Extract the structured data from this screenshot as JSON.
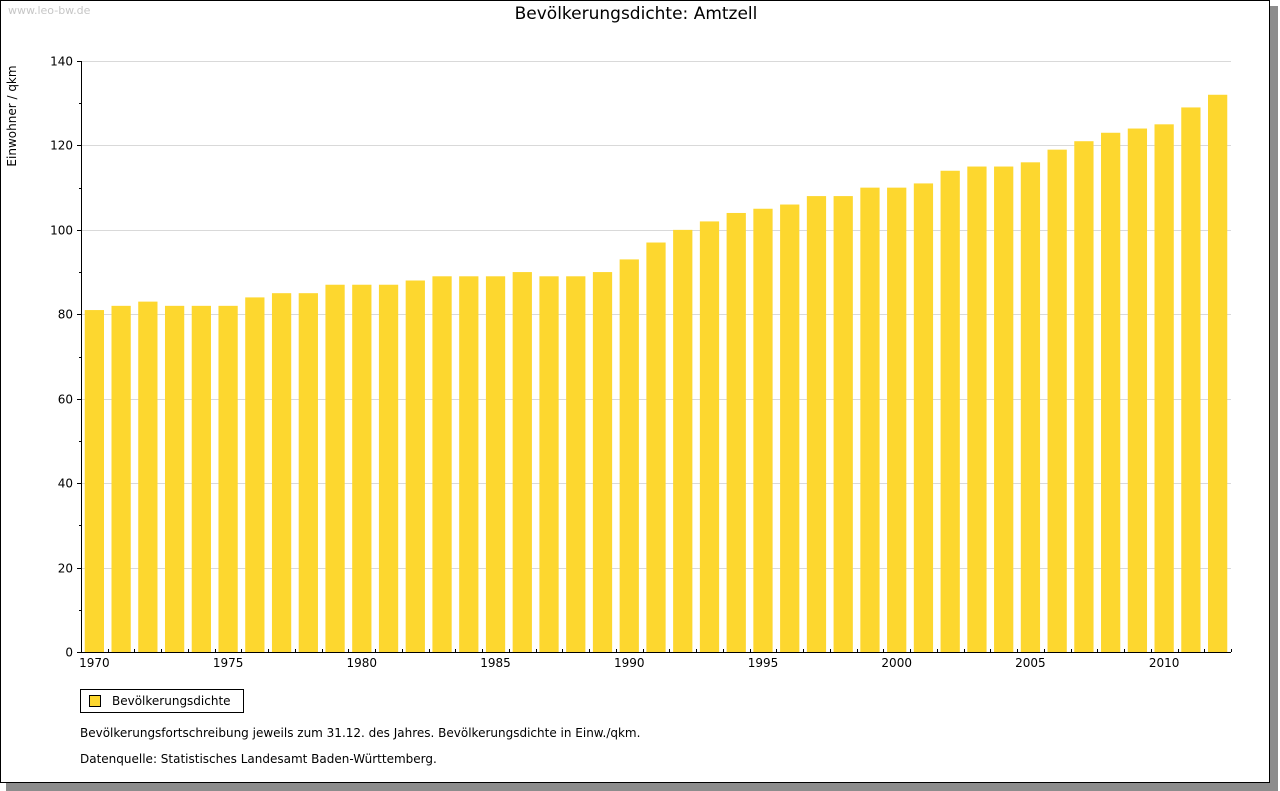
{
  "watermark": "www.leo-bw.de",
  "colors": {
    "bar": "#fdd72f",
    "axis": "#000000",
    "grid": "#d9d9d9"
  },
  "chart_data": {
    "type": "bar",
    "title": "Bevölkerungsdichte: Amtzell",
    "xlabel": "",
    "ylabel": "Einwohner / qkm",
    "ylim": [
      0,
      140
    ],
    "yticks": [
      "0",
      "20",
      "40",
      "60",
      "80",
      "100",
      "120",
      "140"
    ],
    "x_tick_labels": [
      "1970",
      "1975",
      "1980",
      "1985",
      "1990",
      "1995",
      "2000",
      "2005",
      "2010"
    ],
    "grid": true,
    "legend_position": "bottom-left",
    "categories": [
      1970,
      1971,
      1972,
      1973,
      1974,
      1975,
      1976,
      1977,
      1978,
      1979,
      1980,
      1981,
      1982,
      1983,
      1984,
      1985,
      1986,
      1987,
      1988,
      1989,
      1990,
      1991,
      1992,
      1993,
      1994,
      1995,
      1996,
      1997,
      1998,
      1999,
      2000,
      2001,
      2002,
      2003,
      2004,
      2005,
      2006,
      2007,
      2008,
      2009,
      2010,
      2011,
      2012
    ],
    "series": [
      {
        "name": "Bevölkerungsdichte",
        "values": [
          81,
          82,
          83,
          82,
          82,
          82,
          84,
          85,
          85,
          87,
          87,
          87,
          88,
          89,
          89,
          89,
          90,
          89,
          89,
          90,
          93,
          97,
          100,
          102,
          104,
          105,
          106,
          108,
          108,
          110,
          110,
          111,
          114,
          115,
          115,
          116,
          119,
          121,
          123,
          124,
          125,
          129,
          132
        ]
      }
    ]
  },
  "legend": {
    "label": "Bevölkerungsdichte"
  },
  "notes": {
    "line1": "Bevölkerungsfortschreibung jeweils zum 31.12. des Jahres. Bevölkerungsdichte in Einw./qkm.",
    "line2": "Datenquelle: Statistisches Landesamt Baden-Württemberg."
  }
}
